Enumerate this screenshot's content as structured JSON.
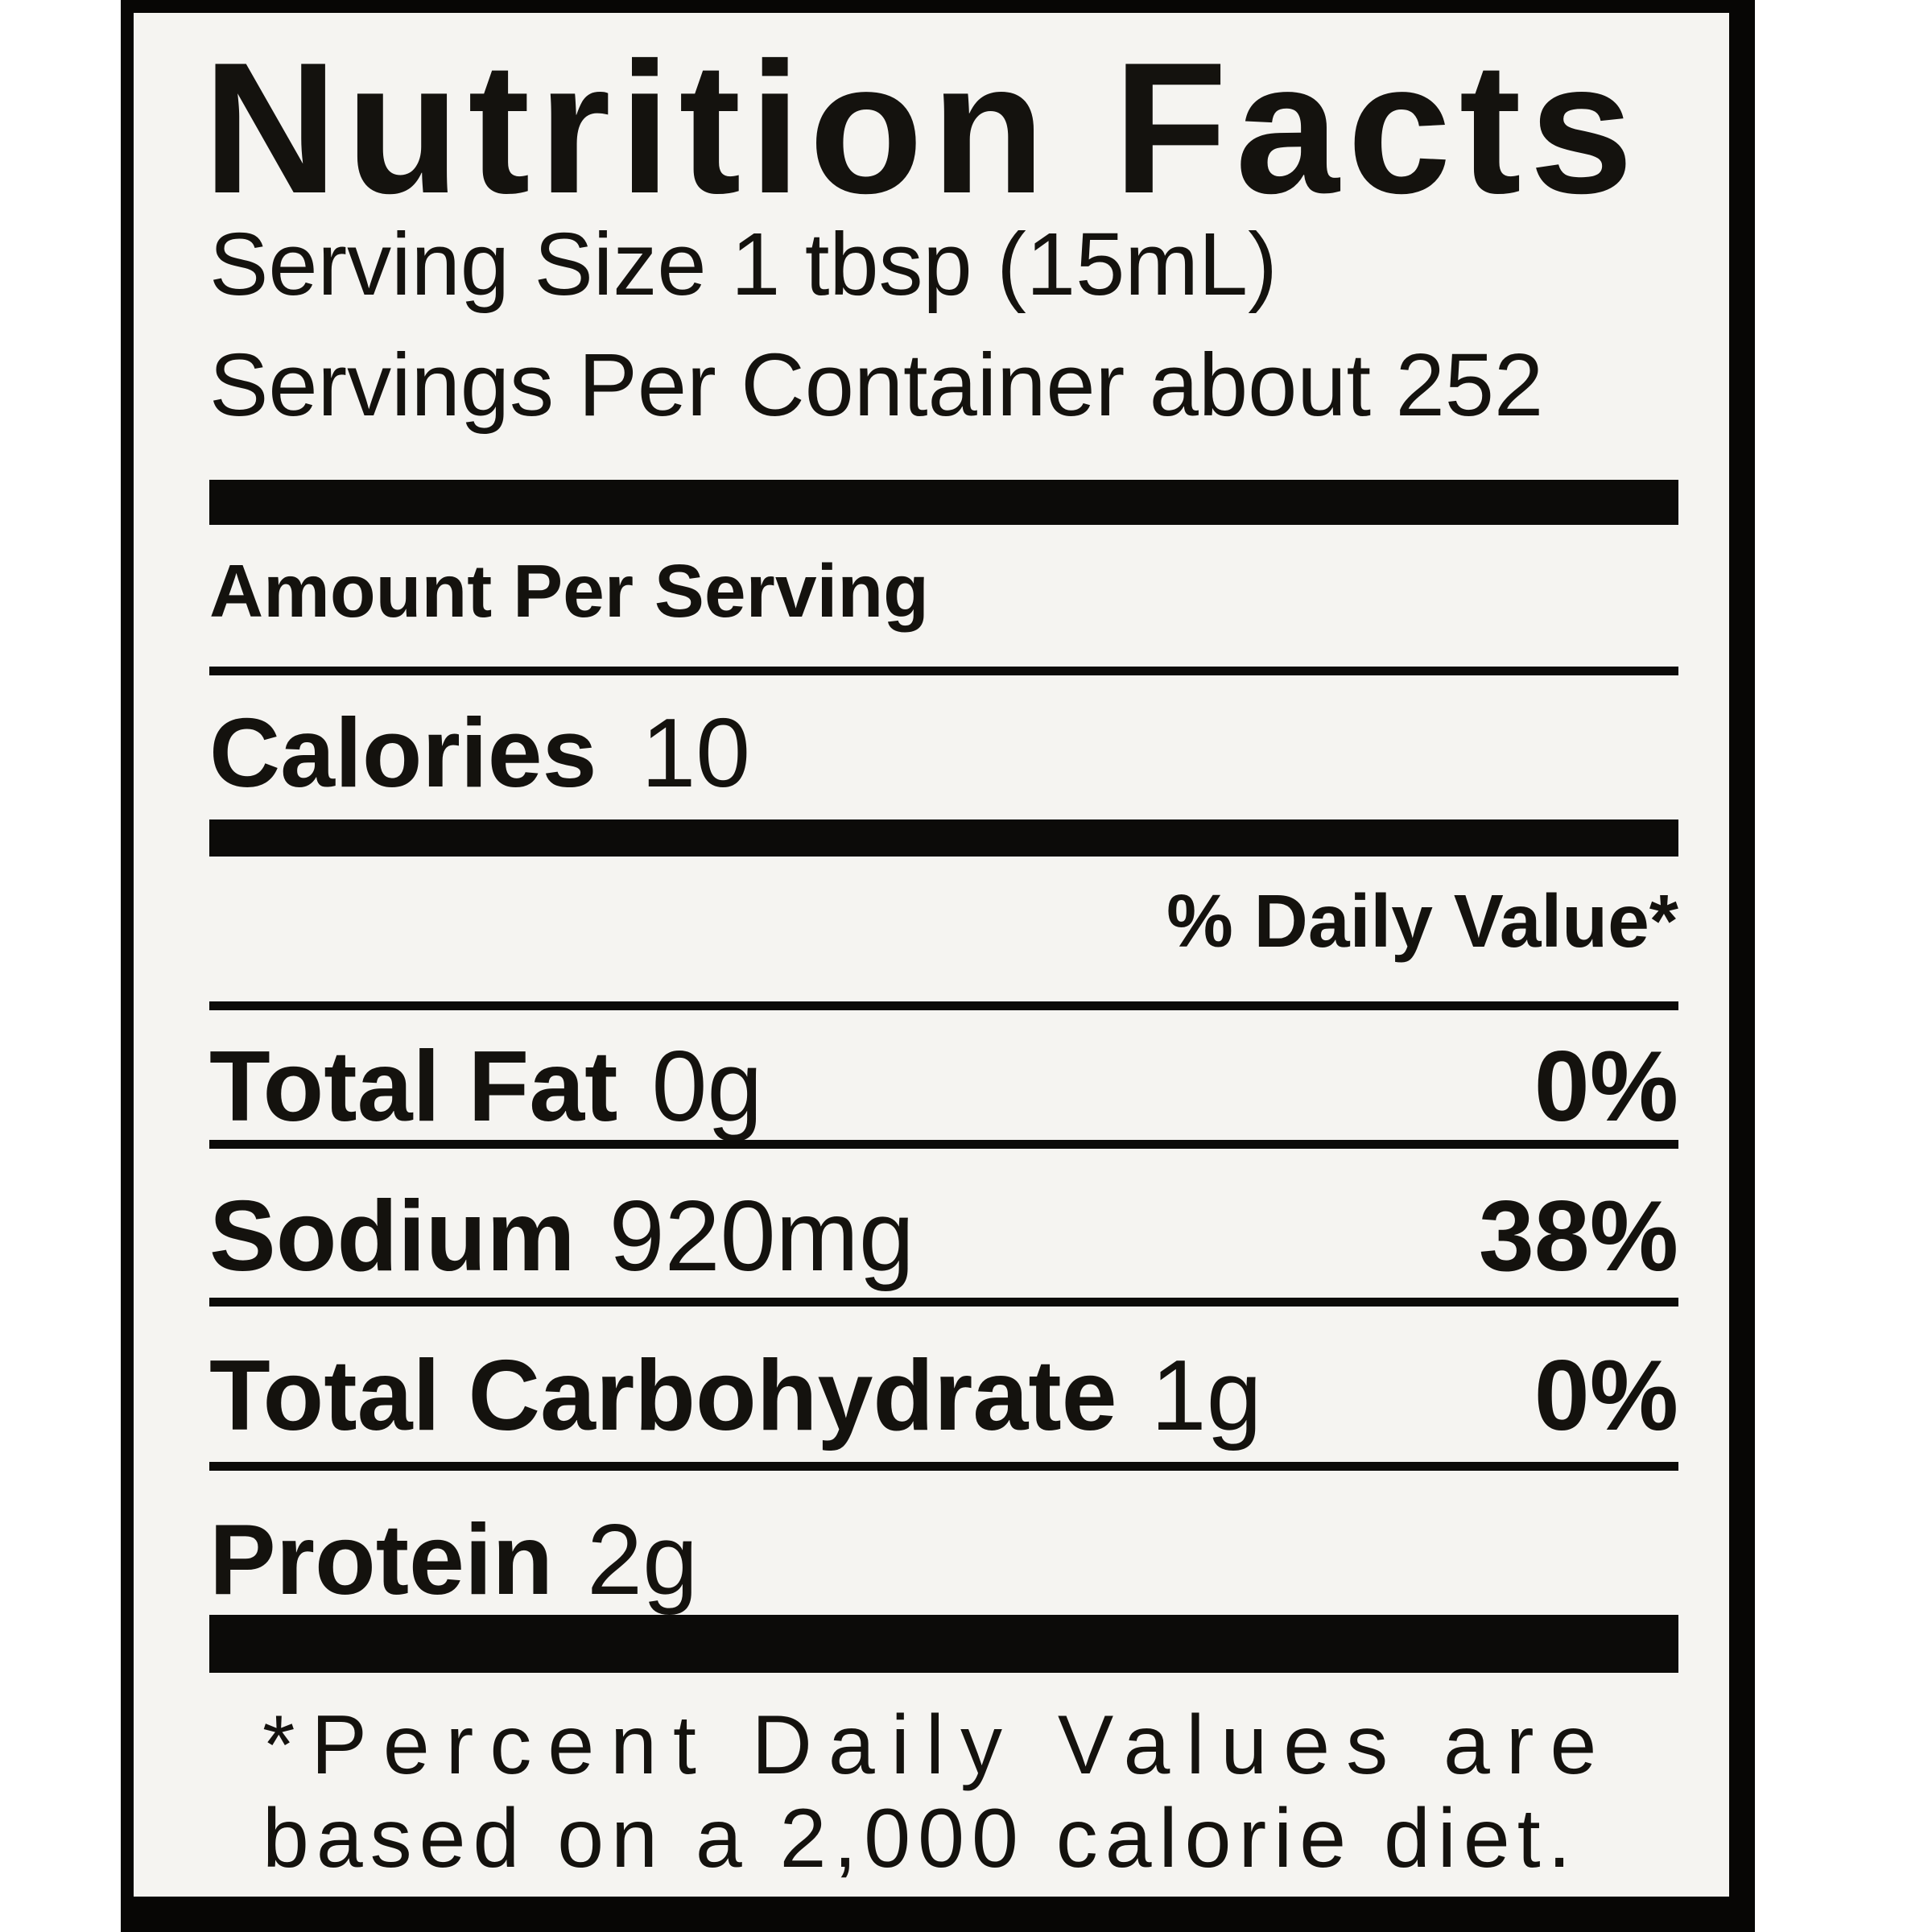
{
  "label": {
    "title": "Nutrition Facts",
    "serving_size": "Serving Size 1 tbsp (15mL)",
    "servings_per_container": "Servings Per Container about 252",
    "amount_per_serving": "Amount Per Serving",
    "calories": {
      "label": "Calories",
      "value": "10"
    },
    "daily_value_header": "% Daily Value*",
    "nutrients": [
      {
        "name": "Total Fat",
        "amount": "0g",
        "dv": "0%"
      },
      {
        "name": "Sodium",
        "amount": "920mg",
        "dv": "38%"
      },
      {
        "name": "Total Carbohydrate",
        "amount": "1g",
        "dv": "0%"
      },
      {
        "name": "Protein",
        "amount": "2g",
        "dv": ""
      }
    ],
    "footnote_line1": "*Percent Daily Values are",
    "footnote_line2": "based on a 2,000 calorie diet.",
    "colors": {
      "page_background": "#ffffff",
      "photo_frame": "#070605",
      "label_background": "#f5f4f1",
      "text": "#14120e"
    }
  }
}
